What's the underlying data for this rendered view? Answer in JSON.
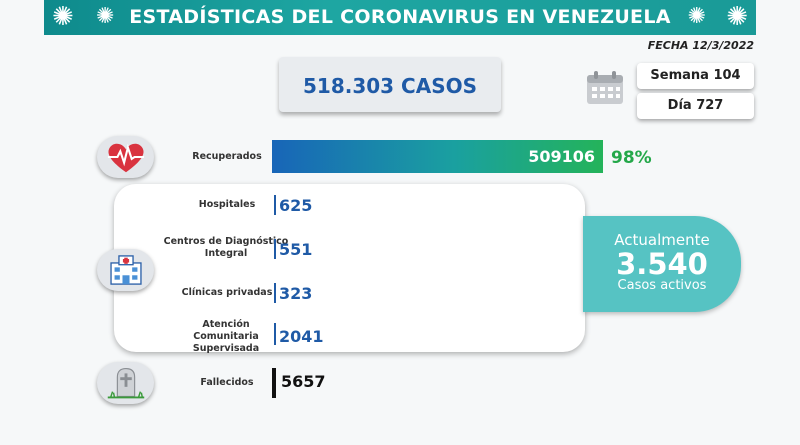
{
  "header": {
    "title": "ESTADÍSTICAS DEL CORONAVIRUS EN VENEZUELA",
    "date": "FECHA 12/3/2022"
  },
  "summary": {
    "total_cases": "518.303 CASOS",
    "week": "Semana 104",
    "day": "Día 727"
  },
  "recovered": {
    "label": "Recuperados",
    "value": "509106",
    "percent": "98%",
    "fraction": 0.98
  },
  "hospitalization": [
    {
      "label": "Hospitales",
      "value": "625"
    },
    {
      "label": "Centros de Diagnóstico Integral",
      "value": "551"
    },
    {
      "label": "Clínicas privadas",
      "value": "323"
    },
    {
      "label": "Atención Comunitaria Supervisada",
      "value": "2041"
    }
  ],
  "active": {
    "line1": "Actualmente",
    "value": "3.540",
    "line2": "Casos activos"
  },
  "deaths": {
    "label": "Fallecidos",
    "value": "5657"
  },
  "colors": {
    "accent": "#1a9a97",
    "blue": "#1f5aa6",
    "green": "#24a84a",
    "active_bg": "#56c3c3"
  },
  "icons": [
    "virus-icon",
    "calendar-icon",
    "heart-icon",
    "hospital-icon",
    "grave-icon"
  ]
}
